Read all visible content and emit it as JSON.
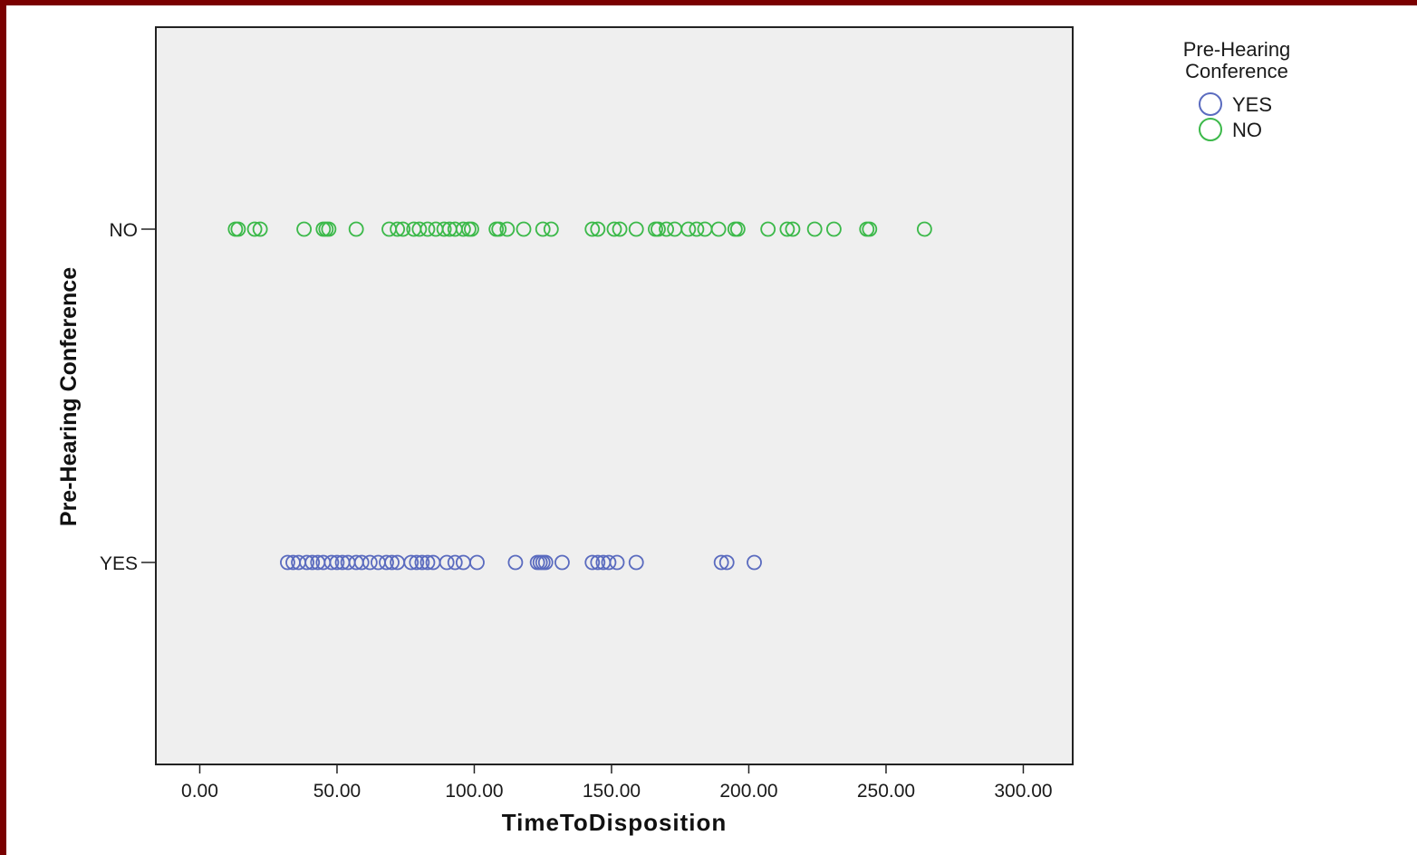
{
  "chart_data": {
    "type": "scatter",
    "title": "",
    "xlabel": "TimeToDisposition",
    "ylabel": "Pre-Hearing Conference",
    "xlim": [
      -16,
      318
    ],
    "x_ticks": [
      0,
      50,
      100,
      150,
      200,
      250,
      300
    ],
    "x_tick_labels": [
      "0.00",
      "50.00",
      "100.00",
      "150.00",
      "200.00",
      "250.00",
      "300.00"
    ],
    "categories": [
      "NO",
      "YES"
    ],
    "legend": {
      "title": "Pre-Hearing Conference",
      "title_lines": [
        "Pre-Hearing",
        "Conference"
      ],
      "placement": "right",
      "entries": [
        "YES",
        "NO"
      ]
    },
    "colors": {
      "YES": "#5a6bbf",
      "NO": "#3cb94a",
      "plot_bg": "#efefef",
      "frame": "#7a0000"
    },
    "grid": false,
    "series": [
      {
        "name": "YES",
        "category": "YES",
        "x": [
          32,
          34,
          36,
          39,
          41,
          43,
          45,
          48,
          50,
          52,
          54,
          57,
          59,
          62,
          65,
          68,
          70,
          72,
          77,
          79,
          81,
          83,
          85,
          90,
          93,
          96,
          101,
          115,
          123,
          124,
          125,
          126,
          132,
          143,
          145,
          147,
          149,
          152,
          159,
          190,
          192,
          202
        ]
      },
      {
        "name": "NO",
        "category": "NO",
        "x": [
          13,
          14,
          20,
          22,
          38,
          45,
          46,
          47,
          57,
          69,
          72,
          74,
          78,
          80,
          83,
          86,
          89,
          91,
          93,
          96,
          98,
          99,
          108,
          109,
          112,
          118,
          125,
          128,
          143,
          145,
          151,
          153,
          159,
          166,
          167,
          170,
          173,
          178,
          181,
          184,
          189,
          195,
          196,
          207,
          214,
          216,
          224,
          231,
          243,
          244,
          264
        ]
      }
    ]
  }
}
